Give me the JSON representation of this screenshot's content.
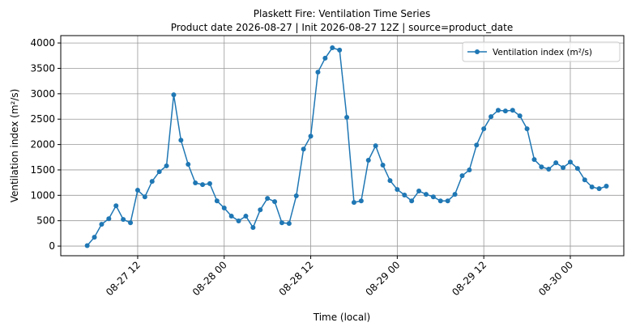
{
  "chart_data": {
    "type": "line",
    "title": "Plaskett Fire: Ventilation Time Series",
    "subtitle": "Product date 2026-08-27 | Init 2026-08-27 12Z | source=product_date",
    "xlabel": "Time (local)",
    "ylabel": "Ventilation index (m²/s)",
    "x": [
      "08-27 05",
      "08-27 06",
      "08-27 07",
      "08-27 08",
      "08-27 09",
      "08-27 10",
      "08-27 11",
      "08-27 12",
      "08-27 13",
      "08-27 14",
      "08-27 15",
      "08-27 16",
      "08-27 17",
      "08-27 18",
      "08-27 19",
      "08-27 20",
      "08-27 21",
      "08-27 22",
      "08-27 23",
      "08-28 00",
      "08-28 01",
      "08-28 02",
      "08-28 03",
      "08-28 04",
      "08-28 05",
      "08-28 06",
      "08-28 07",
      "08-28 08",
      "08-28 09",
      "08-28 10",
      "08-28 11",
      "08-28 12",
      "08-28 13",
      "08-28 14",
      "08-28 15",
      "08-28 16",
      "08-28 17",
      "08-28 18",
      "08-28 19",
      "08-28 20",
      "08-28 21",
      "08-28 22",
      "08-28 23",
      "08-29 00",
      "08-29 01",
      "08-29 02",
      "08-29 03",
      "08-29 04",
      "08-29 05",
      "08-29 06",
      "08-29 07",
      "08-29 08",
      "08-29 09",
      "08-29 10",
      "08-29 11",
      "08-29 12",
      "08-29 13",
      "08-29 14",
      "08-29 15",
      "08-29 16",
      "08-29 17",
      "08-29 18",
      "08-29 19",
      "08-29 20",
      "08-29 21",
      "08-29 22",
      "08-29 23",
      "08-30 00",
      "08-30 01",
      "08-30 02",
      "08-30 03",
      "08-30 04",
      "08-30 05"
    ],
    "series": [
      {
        "name": "Ventilation index (m²/s)",
        "color": "#1f77b4",
        "values": [
          10,
          175,
          430,
          540,
          795,
          525,
          460,
          1100,
          970,
          1275,
          1465,
          1580,
          2980,
          2085,
          1610,
          1245,
          1210,
          1230,
          890,
          750,
          590,
          495,
          590,
          365,
          715,
          940,
          875,
          460,
          445,
          990,
          1910,
          2165,
          3425,
          3700,
          3905,
          3860,
          2535,
          860,
          890,
          1690,
          1975,
          1595,
          1290,
          1115,
          1005,
          890,
          1085,
          1020,
          970,
          890,
          890,
          1020,
          1385,
          1500,
          1990,
          2310,
          2550,
          2675,
          2660,
          2675,
          2565,
          2310,
          1705,
          1560,
          1515,
          1640,
          1545,
          1655,
          1530,
          1305,
          1165,
          1130,
          1180
        ]
      }
    ],
    "xlim": [
      "08-27 01:20",
      "08-30 07:25"
    ],
    "xticks": [
      "08-27 12",
      "08-28 00",
      "08-28 12",
      "08-29 00",
      "08-29 12",
      "08-30 00"
    ],
    "ylim": [
      -190,
      4145
    ],
    "yticks": [
      0,
      500,
      1000,
      1500,
      2000,
      2500,
      3000,
      3500,
      4000
    ],
    "grid": true,
    "legend": "upper right"
  }
}
